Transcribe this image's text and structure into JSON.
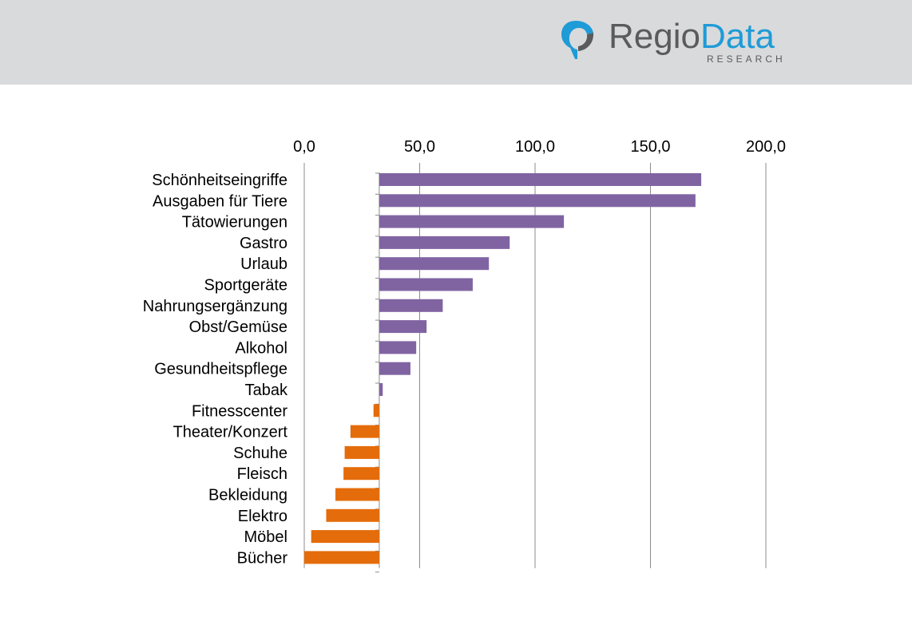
{
  "header": {
    "logo_text_1": "Regio",
    "logo_text_2": "Data",
    "logo_sub": "RESEARCH",
    "band_color": "#d9dadb",
    "logo_gray": "#5a5b5d",
    "logo_blue": "#1f9bd7"
  },
  "chart_data": {
    "type": "bar",
    "orientation": "horizontal",
    "title": "",
    "xlabel": "",
    "ylabel": "",
    "xlim": [
      0,
      200
    ],
    "xticks": [
      0,
      50,
      100,
      150,
      200
    ],
    "xtick_labels": [
      "0,0",
      "50,0",
      "100,0",
      "150,0",
      "200,0"
    ],
    "x_axis_position": "top",
    "baseline": 32.5,
    "grid": true,
    "legend": "none",
    "colors": {
      "above": "#8064a2",
      "below": "#e46c0a"
    },
    "categories": [
      "Schönheitseingriffe",
      "Ausgaben für Tiere",
      "Tätowierungen",
      "Gastro",
      "Urlaub",
      "Sportgeräte",
      "Nahrungsergänzung",
      "Obst/Gemüse",
      "Alkohol",
      "Gesundheitspflege",
      "Tabak",
      "Fitnesscenter",
      "Theater/Konzert",
      "Schuhe",
      "Fleisch",
      "Bekleidung",
      "Elektro",
      "Möbel",
      "Bücher"
    ],
    "values": [
      172,
      169.5,
      112.5,
      89,
      80,
      73,
      60,
      53,
      48.5,
      46,
      34,
      30,
      20,
      17.5,
      17,
      13.5,
      9.5,
      3,
      0
    ]
  }
}
